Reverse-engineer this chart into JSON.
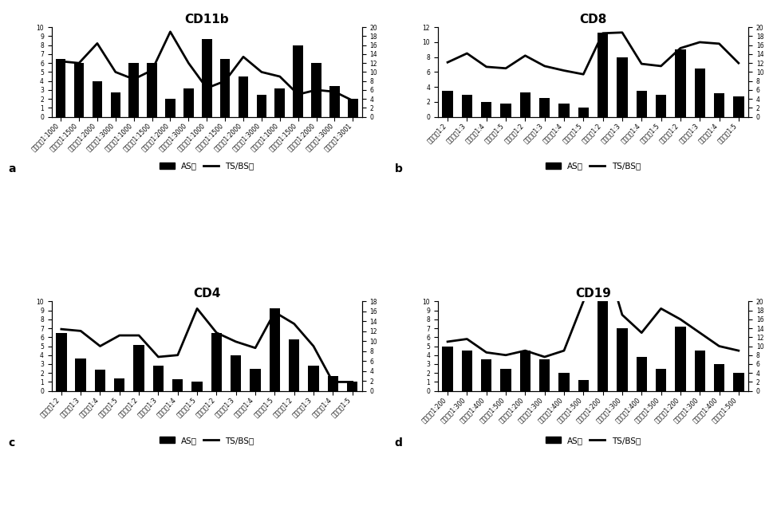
{
  "panels": [
    {
      "title": "CD11b",
      "label": "a",
      "bar_values": [
        6.5,
        6.0,
        4.0,
        2.7,
        6.0,
        6.0,
        2.0,
        3.2,
        8.7,
        6.5,
        4.5,
        2.5,
        3.2,
        8.0,
        6.0,
        3.4,
        2.0
      ],
      "line_values": [
        6.2,
        6.0,
        8.2,
        5.0,
        4.2,
        5.2,
        9.5,
        6.0,
        3.2,
        4.0,
        6.7,
        5.0,
        4.5,
        2.5,
        3.0,
        2.8,
        1.8
      ],
      "x_labels": [
        "酸性高压1:1000",
        "酸性高压1:1500",
        "酸性高压1:2000",
        "酸性高压1:3000",
        "酸性堪泥1:1000",
        "酸性堪泥1:1500",
        "酸性堪泥1:2000",
        "酸性堪泥1:3000",
        "礆性高压1:1000",
        "礆性高压1:1500",
        "礆性高压1:2000",
        "礆性高压1:3000",
        "礆性堪泥1:1000",
        "礆性堪泥1:1500",
        "礆性堪泥1:2000",
        "礆性堪泥1:3000",
        "礆性堪泥1:3001"
      ],
      "left_ylim": [
        0,
        10
      ],
      "right_ylim": [
        0,
        20
      ],
      "left_yticks": [
        0,
        1,
        2,
        3,
        4,
        5,
        6,
        7,
        8,
        9,
        10
      ],
      "right_yticks": [
        0,
        2,
        4,
        6,
        8,
        10,
        12,
        14,
        16,
        18,
        20
      ]
    },
    {
      "title": "CD8",
      "label": "b",
      "bar_values": [
        3.5,
        3.0,
        2.0,
        1.8,
        3.3,
        2.5,
        1.8,
        1.2,
        11.3,
        8.0,
        3.5,
        3.0,
        9.0,
        6.5,
        3.2,
        2.7
      ],
      "line_values": [
        7.3,
        8.5,
        6.7,
        6.5,
        8.2,
        6.8,
        6.2,
        5.7,
        11.2,
        11.3,
        7.1,
        6.8,
        9.2,
        10.0,
        9.8,
        7.2
      ],
      "x_labels": [
        "酸性高压1:2",
        "酸性高压1:3",
        "酸性高压1:4",
        "酸性高压1:5",
        "酸性堪泥1:2",
        "酸性堪泥1:3",
        "酸性堪泥1:4",
        "酸性堪泥1:5",
        "礆性高压1:2",
        "礆性高压1:3",
        "礆性高压1:4",
        "礆性高压1:5",
        "礆性堪泥1:2",
        "礆性堪泥1:3",
        "礆性堪泥1:4",
        "礆性堪泥1:5"
      ],
      "left_ylim": [
        0,
        12
      ],
      "right_ylim": [
        0,
        20
      ],
      "left_yticks": [
        0,
        2,
        4,
        6,
        8,
        10,
        12
      ],
      "right_yticks": [
        0,
        2,
        4,
        6,
        8,
        10,
        12,
        14,
        16,
        18,
        20
      ]
    },
    {
      "title": "CD4",
      "label": "c",
      "bar_values": [
        6.5,
        3.6,
        2.4,
        1.4,
        5.1,
        2.8,
        1.3,
        1.0,
        6.5,
        4.0,
        2.5,
        9.2,
        5.8,
        2.8,
        1.7,
        1.0
      ],
      "line_values": [
        6.9,
        6.7,
        5.0,
        6.2,
        6.2,
        3.8,
        4.0,
        9.2,
        6.5,
        5.5,
        4.8,
        8.8,
        7.5,
        5.0,
        1.0,
        1.0
      ],
      "x_labels": [
        "酸性高压1:2",
        "酸性高压1:3",
        "酸性高压1:4",
        "酸性高压1:5",
        "酸性堪泥1:2",
        "酸性堪泥1:3",
        "酸性堪泥1:4",
        "酸性堪泥1:5",
        "礆性高压1:2",
        "礆性高压1:3",
        "礆性高压1:4",
        "礆性高压1:5",
        "礆性堪泥1:2",
        "礆性堪泥1:3",
        "礆性堪泥1:4",
        "礆性堪泥1:5"
      ],
      "left_ylim": [
        0,
        10
      ],
      "right_ylim": [
        0,
        18
      ],
      "left_yticks": [
        0,
        1,
        2,
        3,
        4,
        5,
        6,
        7,
        8,
        9,
        10
      ],
      "right_yticks": [
        0,
        2,
        4,
        6,
        8,
        10,
        12,
        14,
        16,
        18
      ]
    },
    {
      "title": "CD19",
      "label": "d",
      "bar_values": [
        5.0,
        4.5,
        3.5,
        2.5,
        4.5,
        3.5,
        2.0,
        1.2,
        10.0,
        7.0,
        3.8,
        2.5,
        7.2,
        4.5,
        3.0,
        2.0
      ],
      "line_values": [
        5.5,
        5.8,
        4.3,
        4.0,
        4.5,
        3.8,
        4.5,
        10.0,
        15.8,
        8.5,
        6.5,
        9.2,
        8.0,
        6.5,
        5.0,
        4.5
      ],
      "x_labels": [
        "酸性高压1:200",
        "酸性高压1:300",
        "酸性高压1:400",
        "酸性高压1:500",
        "酸性堪泥1:200",
        "酸性堪泥1:300",
        "酸性堪泥1:400",
        "酸性堪泥1:500",
        "礆性高压1:200",
        "礆性高压1:300",
        "礆性高压1:400",
        "礆性高压1:500",
        "礆性堪泥1:200",
        "礆性堪泥1:300",
        "礆性堪泥1:400",
        "礆性堪泥1:500"
      ],
      "left_ylim": [
        0,
        10
      ],
      "right_ylim": [
        0,
        20
      ],
      "left_yticks": [
        0,
        1,
        2,
        3,
        4,
        5,
        6,
        7,
        8,
        9,
        10
      ],
      "right_yticks": [
        0,
        2,
        4,
        6,
        8,
        10,
        12,
        14,
        16,
        18,
        20
      ]
    }
  ],
  "bar_color": "#000000",
  "line_color": "#000000",
  "background_color": "#ffffff",
  "legend_bar_label": "AS値",
  "legend_line_label": "TS/BS値",
  "title_fontsize": 11,
  "tick_fontsize": 5.5,
  "label_fontsize": 10,
  "legend_fontsize": 7.5
}
